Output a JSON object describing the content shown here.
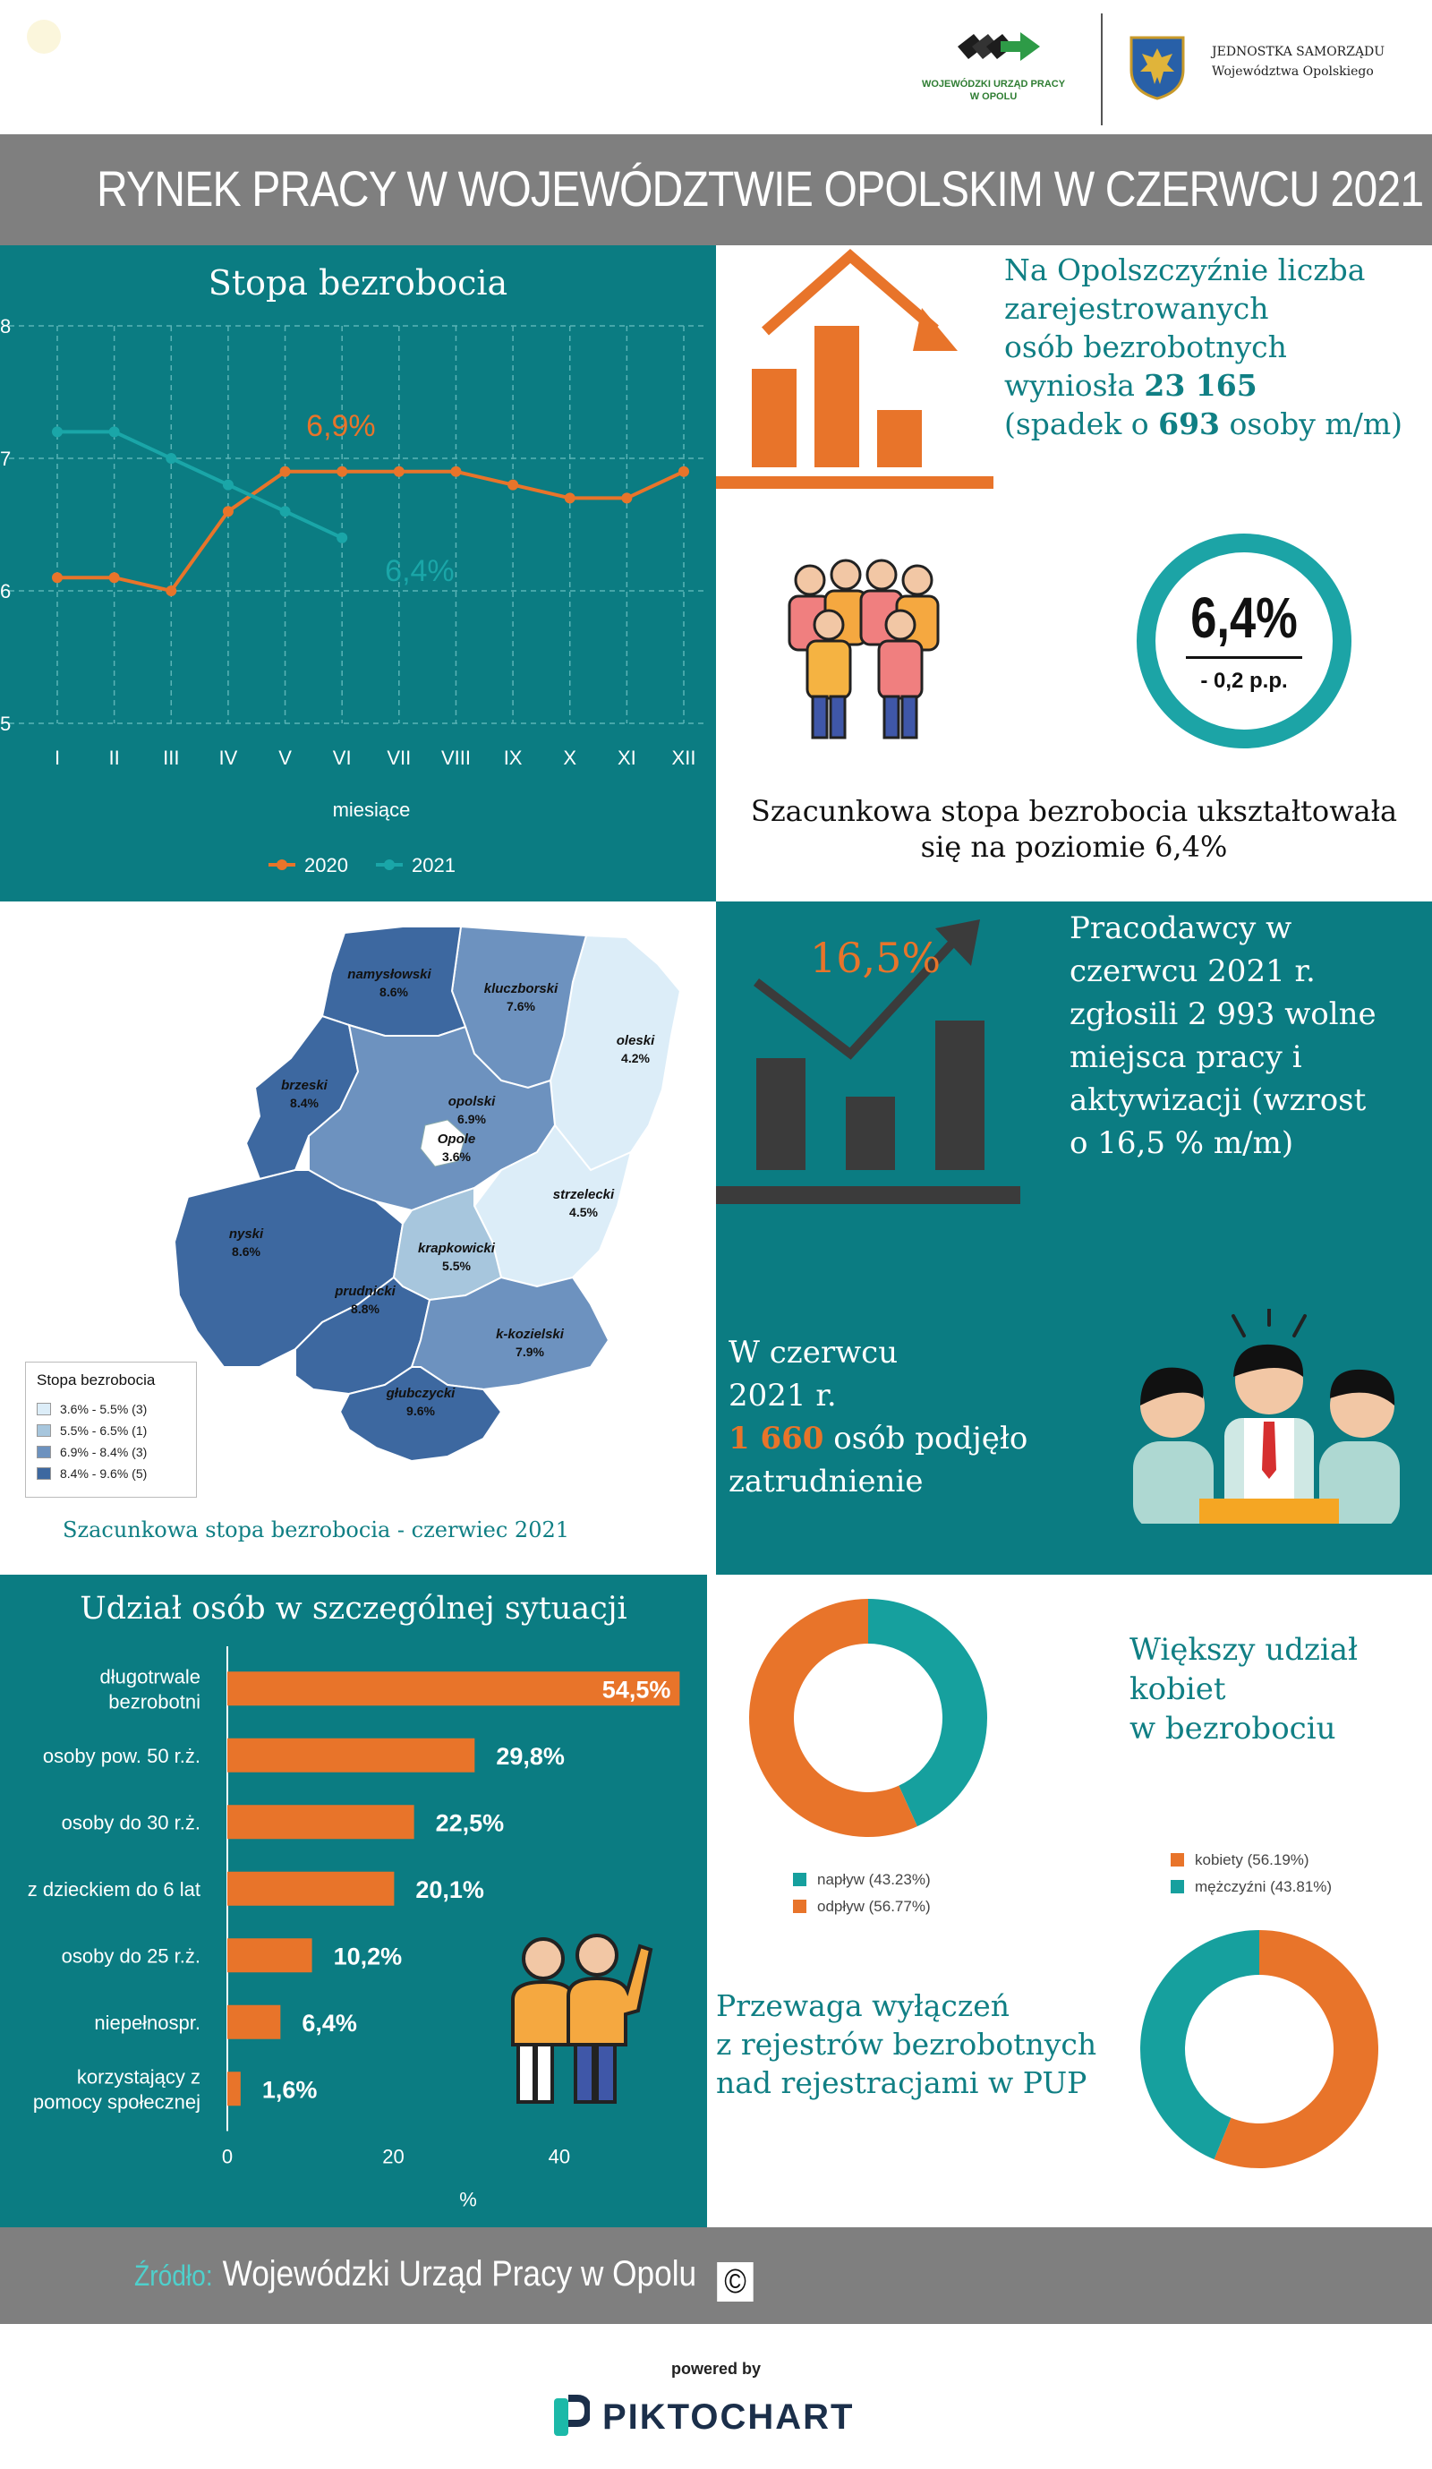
{
  "header": {
    "wup_logo_text_1": "WOJEWÓDZKI URZĄD PRACY",
    "wup_logo_text_2": "W OPOLU",
    "jst_text_1": "JEDNOSTKA SAMORZĄDU",
    "jst_text_2": "Województwa Opolskiego",
    "title": "RYNEK PRACY W WOJEWÓDZTWIE OPOLSKIM W CZERWCU 2021"
  },
  "colors": {
    "teal": "#0b7c82",
    "orange": "#e8742a",
    "line2021": "#1aa6a8",
    "gray_band": "#7f7f7f"
  },
  "chart_data": [
    {
      "type": "line",
      "title": "Stopa bezrobocia",
      "xlabel": "miesiące",
      "ylabel": "",
      "categories": [
        "I",
        "II",
        "III",
        "IV",
        "V",
        "VI",
        "VII",
        "VIII",
        "IX",
        "X",
        "XI",
        "XII"
      ],
      "yticks": [
        "8",
        "7",
        "6",
        "5"
      ],
      "ylim": [
        5,
        8
      ],
      "grid": true,
      "legend_position": "bottom",
      "series": [
        {
          "name": "2020",
          "color": "#e8742a",
          "values": [
            6.1,
            6.1,
            6.0,
            6.6,
            6.9,
            6.9,
            6.9,
            6.9,
            6.8,
            6.7,
            6.7,
            6.9
          ]
        },
        {
          "name": "2021",
          "color": "#1aa6a8",
          "values": [
            7.2,
            7.2,
            7.0,
            6.8,
            6.6,
            6.4,
            null,
            null,
            null,
            null,
            null,
            null
          ]
        }
      ],
      "annotations": [
        {
          "text": "6,9%",
          "series": "2020",
          "index": 5
        },
        {
          "text": "6,4%",
          "series": "2021",
          "index": 5
        }
      ]
    },
    {
      "type": "bar",
      "title": "Udział osób w szczególnej sytuacji",
      "xlabel": "%",
      "ylabel": "",
      "xticks": [
        "0",
        "20",
        "40"
      ],
      "xlim": [
        0,
        55
      ],
      "categories": [
        "długotrwale bezrobotni",
        "osoby pow. 50 r.ż.",
        "osoby do 30 r.ż.",
        "z dzieckiem do 6 lat",
        "osoby do 25 r.ż.",
        "niepełnospr.",
        "korzystający z pomocy społecznej"
      ],
      "category_lines": [
        [
          "długotrwale",
          "bezrobotni"
        ],
        [
          "osoby pow. 50 r.ż."
        ],
        [
          "osoby do 30 r.ż."
        ],
        [
          "z dzieckiem do 6 lat"
        ],
        [
          "osoby do 25 r.ż."
        ],
        [
          "niepełnospr."
        ],
        [
          "korzystający z",
          "pomocy społecznej"
        ]
      ],
      "values": [
        54.5,
        29.8,
        22.5,
        20.1,
        10.2,
        6.4,
        1.6
      ],
      "value_labels": [
        "54,5%",
        "29,8%",
        "22,5%",
        "20,1%",
        "10,2%",
        "6,4%",
        "1,6%"
      ]
    },
    {
      "type": "pie",
      "labels": [
        "napływ (43.23%)",
        "odpływ (56.77%)"
      ],
      "values": [
        43.23,
        56.77
      ],
      "colors": [
        "#16a09e",
        "#e8742a"
      ],
      "legend_position": "bottom"
    },
    {
      "type": "pie",
      "labels": [
        "kobiety (56.19%)",
        "mężczyźni (43.81%)"
      ],
      "values": [
        56.19,
        43.81
      ],
      "colors": [
        "#e8742a",
        "#16a09e"
      ],
      "legend_position": "top"
    }
  ],
  "unemployed": {
    "lines": [
      "Na Opolszczyźnie liczba",
      "zarejestrowanych",
      "osób bezrobotnych"
    ],
    "prefix": "wyniosła ",
    "value": "23 165",
    "change_prefix": "(spadek o ",
    "change_value": "693",
    "change_suffix": " osoby m/m)"
  },
  "rate_circle": {
    "value": "6,4%",
    "change": "- 0,2 p.p."
  },
  "rate_text": {
    "line1": "Szacunkowa stopa bezrobocia ukształtowała",
    "line2": "się na poziomie 6,4%"
  },
  "map": {
    "caption": "Szacunkowa stopa bezrobocia - czerwiec 2021",
    "legend_title": "Stopa bezrobocia",
    "legend_items": [
      "3.6% - 5.5% (3)",
      "5.5% - 6.5% (1)",
      "6.9% - 8.4% (3)",
      "8.4% - 9.6% (5)"
    ],
    "legend_colors": [
      "#dcedf8",
      "#a7c6dd",
      "#6d92bf",
      "#3d68a0"
    ],
    "districts": [
      {
        "name": "namysłowski",
        "value": "8.6%"
      },
      {
        "name": "kluczborski",
        "value": "7.6%"
      },
      {
        "name": "oleski",
        "value": "4.2%"
      },
      {
        "name": "brzeski",
        "value": "8.4%"
      },
      {
        "name": "opolski",
        "value": "6.9%"
      },
      {
        "name": "Opole",
        "value": "3.6%"
      },
      {
        "name": "strzelecki",
        "value": "4.5%"
      },
      {
        "name": "nyski",
        "value": "8.6%"
      },
      {
        "name": "krapkowicki",
        "value": "5.5%"
      },
      {
        "name": "prudnicki",
        "value": "8.8%"
      },
      {
        "name": "k-kozielski",
        "value": "7.9%"
      },
      {
        "name": "głubczycki",
        "value": "9.6%"
      }
    ]
  },
  "offers": {
    "percent": "16,5%",
    "lines": [
      "Pracodawcy w",
      "czerwcu 2021 r.",
      "zgłosili 2 993 wolne",
      "miejsca pracy i",
      "aktywizacji (wzrost",
      "o 16,5 % m/m)"
    ]
  },
  "employment": {
    "line1": "W czerwcu",
    "line2": "2021 r.",
    "value": "1 660",
    "line3_suffix": " osób podjęło",
    "line4": "zatrudnienie"
  },
  "women": {
    "lines": [
      "Większy udział",
      "kobiet",
      "w bezrobociu"
    ]
  },
  "outflow": {
    "lines": [
      "Przewaga wyłączeń",
      "z rejestrów bezrobotnych",
      "nad rejestracjami w PUP"
    ]
  },
  "footer": {
    "source_label": "Źródło:",
    "source_value": "Wojewódzki Urząd Pracy w Opolu",
    "copyright_symbol": "©",
    "powered_by": "powered by",
    "brand": "PIKTOCHART"
  }
}
